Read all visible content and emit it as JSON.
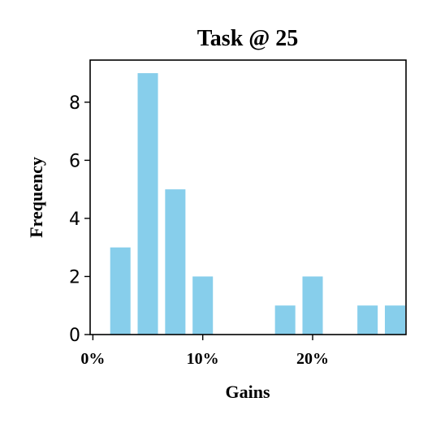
{
  "chart_data": {
    "type": "bar",
    "title": "Task @ 25",
    "xlabel": "Gains",
    "ylabel": "Frequency",
    "bin_width": 2.5,
    "bin_starts": [
      1.25,
      3.75,
      6.25,
      8.75,
      11.25,
      13.75,
      16.25,
      18.75,
      21.25,
      23.75,
      26.25
    ],
    "values": [
      3,
      9,
      5,
      2,
      0,
      0,
      1,
      2,
      0,
      1,
      1
    ],
    "xlim": [
      -0.25,
      28.5
    ],
    "ylim": [
      0,
      9.45
    ],
    "xticks": [
      0,
      10,
      20
    ],
    "xtick_labels": [
      "0%",
      "10%",
      "20%"
    ],
    "yticks": [
      0,
      2,
      4,
      6,
      8
    ],
    "ytick_labels": [
      "0",
      "2",
      "4",
      "6",
      "8"
    ],
    "bar_color": "#87ceeb",
    "grid": false,
    "legend": "none"
  }
}
